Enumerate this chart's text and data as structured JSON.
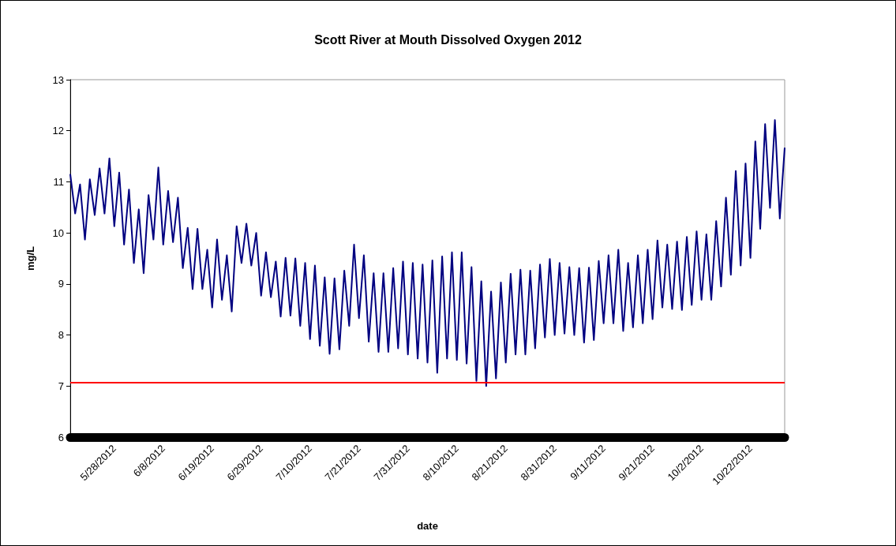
{
  "chart_data": {
    "type": "line",
    "title": "Scott River at Mouth Dissolved Oxygen 2012",
    "xlabel": "date",
    "ylabel": "mg/L",
    "categories": [
      null,
      null,
      null,
      null,
      null,
      null,
      null,
      null,
      null,
      "5/28/2012",
      null,
      null,
      null,
      null,
      null,
      null,
      null,
      null,
      null,
      "6/8/2012",
      null,
      null,
      null,
      null,
      null,
      null,
      null,
      null,
      null,
      "6/19/2012",
      null,
      null,
      null,
      null,
      null,
      null,
      null,
      null,
      null,
      "6/29/2012",
      null,
      null,
      null,
      null,
      null,
      null,
      null,
      null,
      null,
      "7/10/2012",
      null,
      null,
      null,
      null,
      null,
      null,
      null,
      null,
      null,
      "7/21/2012",
      null,
      null,
      null,
      null,
      null,
      null,
      null,
      null,
      null,
      "7/31/2012",
      null,
      null,
      null,
      null,
      null,
      null,
      null,
      null,
      null,
      "8/10/2012",
      null,
      null,
      null,
      null,
      null,
      null,
      null,
      null,
      null,
      "8/21/2012",
      null,
      null,
      null,
      null,
      null,
      null,
      null,
      null,
      null,
      "8/31/2012",
      null,
      null,
      null,
      null,
      null,
      null,
      null,
      null,
      null,
      "9/11/2012",
      null,
      null,
      null,
      null,
      null,
      null,
      null,
      null,
      null,
      "9/21/2012",
      null,
      null,
      null,
      null,
      null,
      null,
      null,
      null,
      null,
      "10/2/2012",
      null,
      null,
      null,
      null,
      null,
      null,
      null,
      null,
      null,
      "10/22/2012",
      null,
      null,
      null,
      null,
      null,
      null,
      null
    ],
    "series": [
      {
        "color": "#000080",
        "values": [
          11.15,
          10.38,
          10.95,
          9.87,
          11.05,
          10.35,
          11.26,
          10.38,
          11.46,
          10.13,
          11.18,
          9.77,
          10.85,
          9.41,
          10.46,
          9.21,
          10.74,
          9.87,
          11.28,
          9.77,
          10.82,
          9.82,
          10.69,
          9.31,
          10.1,
          8.9,
          10.08,
          8.9,
          9.67,
          8.54,
          9.87,
          8.69,
          9.56,
          8.46,
          10.13,
          9.41,
          10.18,
          9.36,
          10.0,
          8.77,
          9.62,
          8.74,
          9.44,
          8.36,
          9.51,
          8.38,
          9.5,
          8.18,
          9.41,
          7.92,
          9.36,
          7.79,
          9.13,
          7.63,
          9.11,
          7.72,
          9.26,
          8.18,
          9.77,
          8.33,
          9.56,
          7.87,
          9.21,
          7.67,
          9.21,
          7.67,
          9.31,
          7.74,
          9.44,
          7.62,
          9.41,
          7.54,
          9.38,
          7.46,
          9.46,
          7.26,
          9.54,
          7.54,
          9.62,
          7.51,
          9.62,
          7.44,
          9.33,
          7.1,
          9.05,
          7.0,
          8.85,
          7.15,
          9.03,
          7.46,
          9.2,
          7.62,
          9.28,
          7.62,
          9.26,
          7.74,
          9.38,
          7.95,
          9.49,
          8.0,
          9.41,
          8.03,
          9.33,
          8.0,
          9.31,
          7.85,
          9.32,
          7.9,
          9.45,
          8.23,
          9.56,
          8.23,
          9.67,
          8.08,
          9.41,
          8.15,
          9.56,
          8.23,
          9.67,
          8.31,
          9.85,
          8.54,
          9.77,
          8.51,
          9.83,
          8.49,
          9.92,
          8.59,
          10.03,
          8.69,
          9.97,
          8.69,
          10.23,
          8.95,
          10.69,
          9.18,
          11.21,
          9.36,
          11.36,
          9.51,
          11.79,
          10.08,
          12.13,
          10.49,
          12.21,
          10.28,
          11.67
        ]
      }
    ],
    "ylim": [
      6,
      13
    ],
    "yticks": [
      6,
      7,
      8,
      9,
      10,
      11,
      12,
      13
    ],
    "ref_lines": [
      {
        "axis": "y",
        "value": 7.07,
        "color": "#ff0000"
      }
    ],
    "marker": "none",
    "grid": false,
    "legend": false
  }
}
